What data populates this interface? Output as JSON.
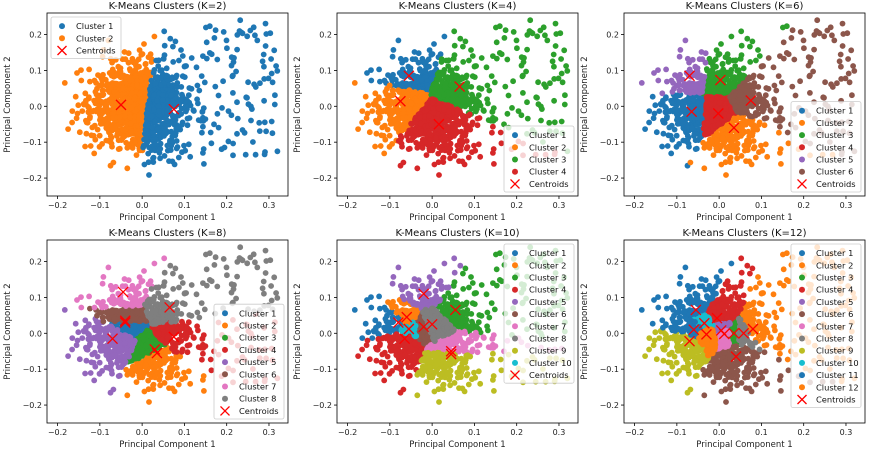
{
  "chart_data": [
    {
      "type": "scatter",
      "title": "K-Means Clusters (K=2)",
      "xlabel": "Principal Component 1",
      "ylabel": "Principal Component 2",
      "xlim": [
        -0.225,
        0.345
      ],
      "ylim": [
        -0.25,
        0.26
      ],
      "xticks": [
        "−0.2",
        "−0.1",
        "0.0",
        "0.1",
        "0.2",
        "0.3"
      ],
      "yticks": [
        "−0.2",
        "−0.1",
        "0.0",
        "0.1",
        "0.2"
      ],
      "legend_position": "upper-left",
      "legend": [
        "Cluster 1",
        "Cluster 2",
        "Centroids"
      ],
      "colors": [
        "#1f77b4",
        "#ff7f0e"
      ],
      "draw_order": [
        1,
        0
      ],
      "centroids": [
        [
          0.075,
          -0.008
        ],
        [
          -0.05,
          0.004
        ]
      ]
    },
    {
      "type": "scatter",
      "title": "K-Means Clusters (K=4)",
      "xlabel": "Principal Component 1",
      "ylabel": "Principal Component 2",
      "xlim": [
        -0.225,
        0.345
      ],
      "ylim": [
        -0.25,
        0.26
      ],
      "xticks": [
        "−0.2",
        "−0.1",
        "0.0",
        "0.1",
        "0.2",
        "0.3"
      ],
      "yticks": [
        "−0.2",
        "−0.1",
        "0.0",
        "0.1",
        "0.2"
      ],
      "legend_position": "lower-right",
      "legend": [
        "Cluster 1",
        "Cluster 2",
        "Cluster 3",
        "Cluster 4",
        "Centroids"
      ],
      "colors": [
        "#1f77b4",
        "#ff7f0e",
        "#2ca02c",
        "#d62728"
      ],
      "draw_order": [
        0,
        1,
        2,
        3
      ],
      "centroids": [
        [
          -0.055,
          0.085
        ],
        [
          -0.075,
          0.014
        ],
        [
          0.065,
          0.055
        ],
        [
          0.016,
          -0.05
        ]
      ]
    },
    {
      "type": "scatter",
      "title": "K-Means Clusters (K=6)",
      "xlabel": "Principal Component 1",
      "ylabel": "Principal Component 2",
      "xlim": [
        -0.225,
        0.345
      ],
      "ylim": [
        -0.25,
        0.26
      ],
      "xticks": [
        "−0.2",
        "−0.1",
        "0.0",
        "0.1",
        "0.2",
        "0.3"
      ],
      "yticks": [
        "−0.2",
        "−0.1",
        "0.0",
        "0.1",
        "0.2"
      ],
      "legend_position": "lower-right",
      "legend": [
        "Cluster 1",
        "Cluster 2",
        "Cluster 3",
        "Cluster 4",
        "Cluster 5",
        "Cluster 6",
        "Centroids"
      ],
      "colors": [
        "#1f77b4",
        "#ff7f0e",
        "#2ca02c",
        "#d62728",
        "#9467bd",
        "#8c564b"
      ],
      "draw_order": [
        0,
        1,
        2,
        3,
        4,
        5
      ],
      "centroids": [
        [
          -0.065,
          -0.015
        ],
        [
          0.035,
          -0.06
        ],
        [
          0.003,
          0.073
        ],
        [
          -0.002,
          -0.02
        ],
        [
          -0.07,
          0.085
        ],
        [
          0.075,
          0.016
        ]
      ]
    },
    {
      "type": "scatter",
      "title": "K-Means Clusters (K=8)",
      "xlabel": "Principal Component 1",
      "ylabel": "Principal Component 2",
      "xlim": [
        -0.225,
        0.345
      ],
      "ylim": [
        -0.25,
        0.26
      ],
      "xticks": [
        "−0.2",
        "−0.1",
        "0.0",
        "0.1",
        "0.2",
        "0.3"
      ],
      "yticks": [
        "−0.2",
        "−0.1",
        "0.0",
        "0.1",
        "0.2"
      ],
      "legend_position": "lower-right",
      "legend": [
        "Cluster 1",
        "Cluster 2",
        "Cluster 3",
        "Cluster 4",
        "Cluster 5",
        "Cluster 6",
        "Cluster 7",
        "Cluster 8",
        "Centroids"
      ],
      "colors": [
        "#1f77b4",
        "#ff7f0e",
        "#2ca02c",
        "#d62728",
        "#9467bd",
        "#8c564b",
        "#e377c2",
        "#7f7f7f"
      ],
      "draw_order": [
        0,
        1,
        2,
        3,
        4,
        5,
        6,
        7
      ],
      "centroids": [
        [
          -0.04,
          0.03
        ],
        [
          0.035,
          -0.055
        ],
        [
          0.03,
          -0.045
        ],
        [
          0.075,
          -0.01
        ],
        [
          -0.07,
          -0.015
        ],
        [
          -0.04,
          0.035
        ],
        [
          -0.045,
          0.115
        ],
        [
          0.065,
          0.072
        ]
      ]
    },
    {
      "type": "scatter",
      "title": "K-Means Clusters (K=10)",
      "xlabel": "Principal Component 1",
      "ylabel": "Principal Component 2",
      "xlim": [
        -0.225,
        0.345
      ],
      "ylim": [
        -0.25,
        0.26
      ],
      "xticks": [
        "−0.2",
        "−0.1",
        "0.0",
        "0.1",
        "0.2",
        "0.3"
      ],
      "yticks": [
        "−0.2",
        "−0.1",
        "0.0",
        "0.1",
        "0.2"
      ],
      "legend_position": "upper-right",
      "legend": [
        "Cluster 1",
        "Cluster 2",
        "Cluster 3",
        "Cluster 4",
        "Cluster 5",
        "Cluster 6",
        "Cluster 7",
        "Cluster 8",
        "Cluster 9",
        "Cluster 10",
        "Centroids"
      ],
      "colors": [
        "#1f77b4",
        "#ff7f0e",
        "#2ca02c",
        "#d62728",
        "#9467bd",
        "#8c564b",
        "#e377c2",
        "#7f7f7f",
        "#bcbd22",
        "#17becf"
      ],
      "draw_order": [
        0,
        1,
        2,
        3,
        4,
        5,
        6,
        7,
        8,
        9
      ],
      "centroids": [
        [
          -0.08,
          0.03
        ],
        [
          -0.06,
          0.045
        ],
        [
          0.055,
          0.065
        ],
        [
          -0.065,
          -0.015
        ],
        [
          -0.02,
          0.11
        ],
        [
          -0.02,
          0.018
        ],
        [
          0.045,
          -0.05
        ],
        [
          0.0,
          0.025
        ],
        [
          0.045,
          -0.058
        ],
        [
          -0.055,
          0.012
        ]
      ]
    },
    {
      "type": "scatter",
      "title": "K-Means Clusters (K=12)",
      "xlabel": "Principal Component 1",
      "ylabel": "Principal Component 2",
      "xlim": [
        -0.225,
        0.345
      ],
      "ylim": [
        -0.25,
        0.26
      ],
      "xticks": [
        "−0.2",
        "−0.1",
        "0.0",
        "0.1",
        "0.2",
        "0.3"
      ],
      "yticks": [
        "−0.2",
        "−0.1",
        "0.0",
        "0.1",
        "0.2"
      ],
      "legend_position": "upper-right",
      "legend": [
        "Cluster 1",
        "Cluster 2",
        "Cluster 3",
        "Cluster 4",
        "Cluster 5",
        "Cluster 6",
        "Cluster 7",
        "Cluster 8",
        "Cluster 9",
        "Cluster 10",
        "Cluster 11",
        "Cluster 12",
        "Centroids"
      ],
      "colors": [
        "#1f77b4",
        "#ff7f0e",
        "#2ca02c",
        "#d62728",
        "#9467bd",
        "#8c564b",
        "#e377c2",
        "#7f7f7f",
        "#bcbd22",
        "#17becf",
        "#1f77b4",
        "#ff7f0e"
      ],
      "draw_order": [
        0,
        1,
        2,
        3,
        4,
        5,
        6,
        7,
        8,
        9,
        10,
        11
      ],
      "centroids": [
        [
          -0.055,
          0.065
        ],
        [
          0.08,
          0.012
        ],
        [
          0.035,
          0.0
        ],
        [
          -0.005,
          0.042
        ],
        [
          0.005,
          0.008
        ],
        [
          0.04,
          -0.065
        ],
        [
          0.012,
          -0.002
        ],
        [
          0.058,
          0.0
        ],
        [
          -0.07,
          -0.022
        ],
        [
          -0.035,
          0.028
        ],
        [
          -0.06,
          0.01
        ],
        [
          -0.03,
          -0.003
        ]
      ]
    }
  ]
}
